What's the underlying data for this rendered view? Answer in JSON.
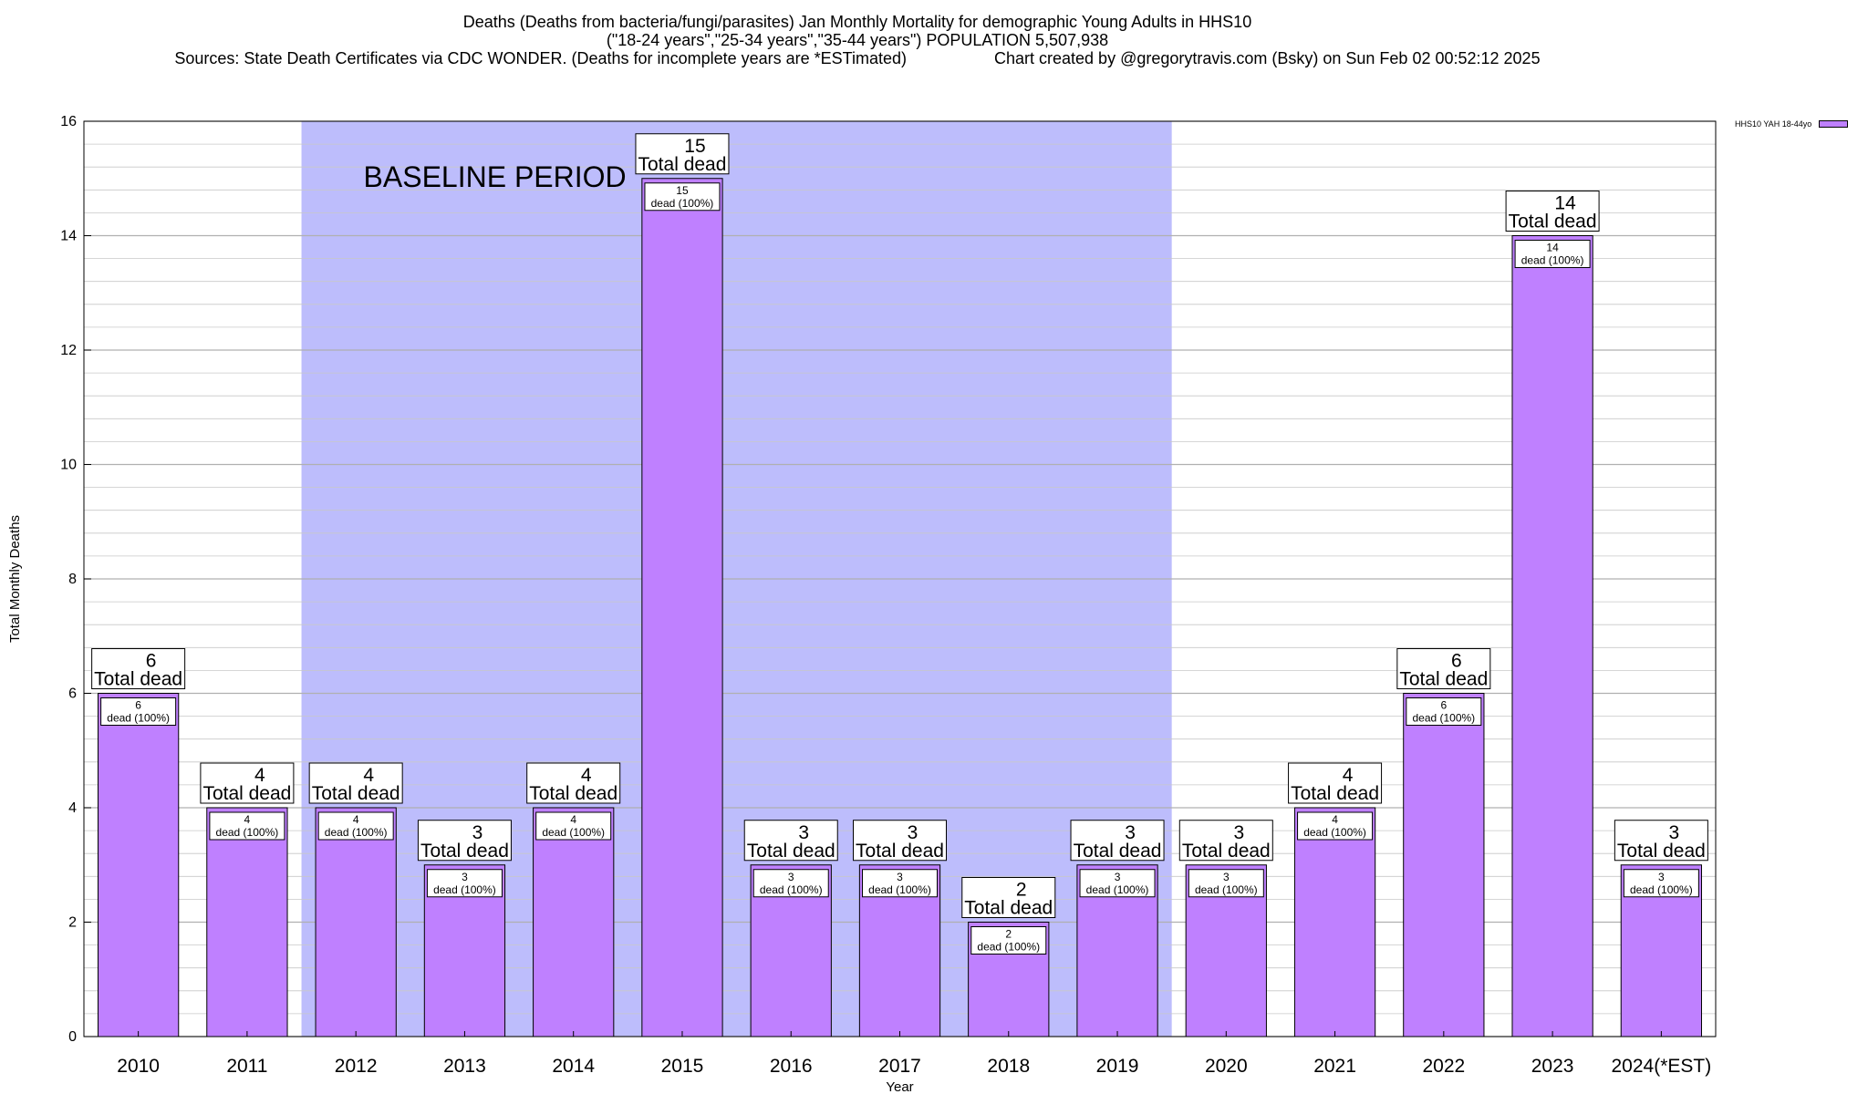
{
  "title": {
    "line1": "Deaths (Deaths from bacteria/fungi/parasites) Jan Monthly Mortality for demographic Young Adults in HHS10",
    "line2": "(\"18-24 years\",\"25-34 years\",\"35-44 years\") POPULATION 5,507,938",
    "line3_left": "Sources: State Death Certificates via CDC WONDER. (Deaths for incomplete years are *ESTimated)",
    "line3_right": "Chart created by @gregorytravis.com (Bsky) on Sun Feb 02 00:52:12 2025"
  },
  "legend": {
    "label": "HHS10 YAH 18-44yo"
  },
  "colors": {
    "bar": "#bf80ff",
    "baseline": "#bdbdfc",
    "grid": "#c8c8c8"
  },
  "chart_data": {
    "type": "bar",
    "categories": [
      "2010",
      "2011",
      "2012",
      "2013",
      "2014",
      "2015",
      "2016",
      "2017",
      "2018",
      "2019",
      "2020",
      "2021",
      "2022",
      "2023",
      "2024(*EST)"
    ],
    "series": [
      {
        "name": "HHS10 YAH 18-44yo",
        "values": [
          6,
          4,
          4,
          3,
          4,
          15,
          3,
          3,
          2,
          3,
          3,
          4,
          6,
          14,
          3
        ]
      }
    ],
    "xlabel": "Year",
    "ylabel": "Total Monthly Deaths",
    "ylim": [
      0,
      16
    ],
    "yticks": [
      0,
      2,
      4,
      6,
      8,
      10,
      12,
      14,
      16
    ],
    "grid": true,
    "legend_position": "top-right",
    "baseline_period": {
      "label": "BASELINE PERIOD",
      "from": "2012",
      "to": "2019"
    },
    "annotation_big_suffix": "Total dead",
    "annotation_small_suffix": "dead (100%)"
  }
}
